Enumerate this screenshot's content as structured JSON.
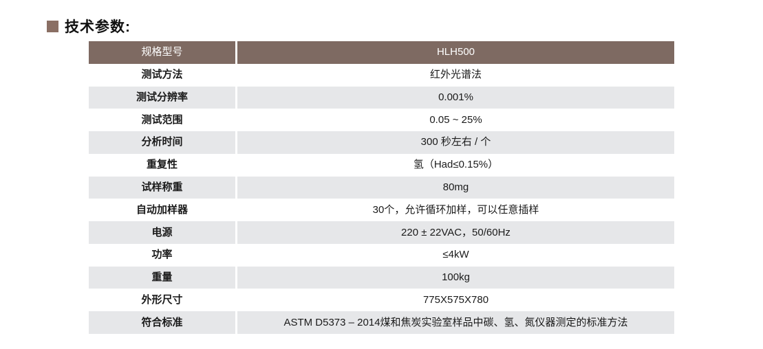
{
  "page": {
    "title": "技术参数:"
  },
  "colors": {
    "header_bg": "#7e6a62",
    "alt_row_bg": "#e6e7e9",
    "bullet": "#8a6f64"
  },
  "table": {
    "header": {
      "label": "规格型号",
      "value": "HLH500"
    },
    "rows": [
      {
        "label": "测试方法",
        "value": "红外光谱法"
      },
      {
        "label": "测试分辨率",
        "value": "0.001%"
      },
      {
        "label": "测试范围",
        "value": "0.05 ~ 25%"
      },
      {
        "label": "分析时间",
        "value": "300 秒左右 / 个"
      },
      {
        "label": "重复性",
        "value": "氢（Had≤0.15%）"
      },
      {
        "label": "试样称重",
        "value": "80mg"
      },
      {
        "label": "自动加样器",
        "value": "30个，允许循环加样，可以任意插样"
      },
      {
        "label": "电源",
        "value": "220 ± 22VAC，50/60Hz"
      },
      {
        "label": "功率",
        "value": "≤4kW"
      },
      {
        "label": "重量",
        "value": "100kg"
      },
      {
        "label": "外形尺寸",
        "value": "775X575X780"
      },
      {
        "label": "符合标准",
        "value": "ASTM D5373 – 2014煤和焦炭实验室样品中碳、氢、氮仪器测定的标准方法"
      }
    ]
  }
}
